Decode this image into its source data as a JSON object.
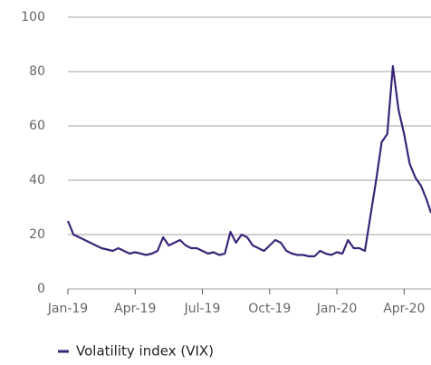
{
  "chart_data": {
    "type": "line",
    "x": [
      0,
      0.25,
      0.5,
      0.75,
      1,
      1.25,
      1.5,
      1.75,
      2,
      2.25,
      2.5,
      2.75,
      3,
      3.25,
      3.5,
      3.75,
      4,
      4.25,
      4.5,
      4.75,
      5,
      5.25,
      5.5,
      5.75,
      6,
      6.25,
      6.5,
      6.75,
      7,
      7.25,
      7.5,
      7.75,
      8,
      8.25,
      8.5,
      8.75,
      9,
      9.25,
      9.5,
      9.75,
      10,
      10.25,
      10.5,
      10.75,
      11,
      11.25,
      11.5,
      11.75,
      12,
      12.25,
      12.5,
      12.75,
      13,
      13.25,
      13.5,
      13.75,
      14,
      14.25,
      14.5,
      14.75,
      15,
      15.25,
      15.5,
      15.75,
      16,
      16.2
    ],
    "series": [
      {
        "name": "Volatility index (VIX)",
        "color": "#3b2577",
        "values": [
          25,
          20,
          19,
          18,
          17,
          16,
          15,
          14.5,
          14,
          15,
          14,
          13,
          13.5,
          13,
          12.5,
          13,
          14,
          19,
          16,
          17,
          18,
          16,
          15,
          15,
          14,
          13,
          13.5,
          12.5,
          13,
          21,
          17,
          20,
          19,
          16,
          15,
          14,
          16,
          18,
          17,
          14,
          13,
          12.5,
          12.5,
          12,
          12,
          14,
          13,
          12.5,
          13.5,
          13,
          18,
          15,
          15,
          14,
          27,
          40,
          54,
          57,
          82,
          66,
          57,
          46,
          41,
          38,
          33,
          28
        ]
      }
    ],
    "xlim": [
      0,
      16.2
    ],
    "xticks": [
      {
        "value": 0,
        "label": "Jan-19"
      },
      {
        "value": 3,
        "label": "Apr-19"
      },
      {
        "value": 6,
        "label": "Jul-19"
      },
      {
        "value": 9,
        "label": "Oct-19"
      },
      {
        "value": 12,
        "label": "Jan-20"
      },
      {
        "value": 15,
        "label": "Apr-20"
      }
    ],
    "ylim": [
      0,
      100
    ],
    "yticks": [
      0,
      20,
      40,
      60,
      80,
      100
    ],
    "grid": true
  }
}
